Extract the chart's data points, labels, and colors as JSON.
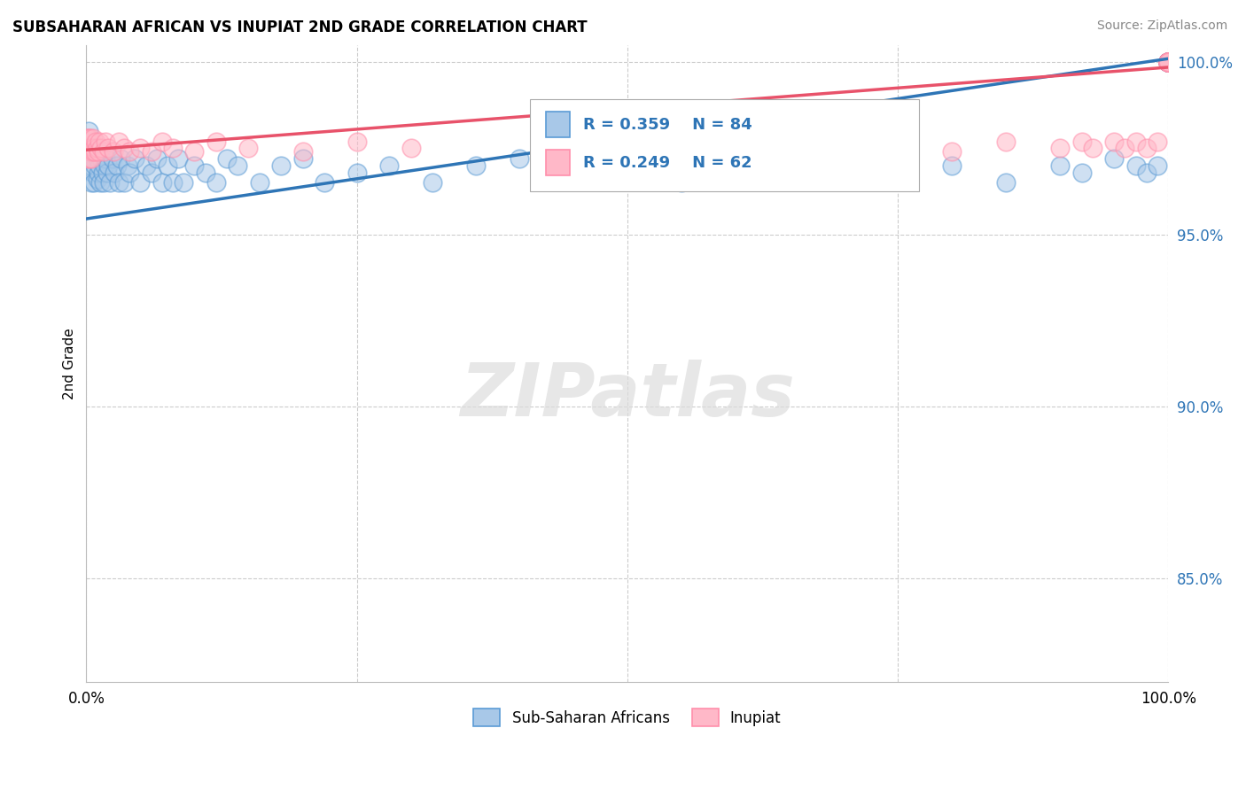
{
  "title": "SUBSAHARAN AFRICAN VS INUPIAT 2ND GRADE CORRELATION CHART",
  "source_text": "Source: ZipAtlas.com",
  "ylabel": "2nd Grade",
  "xlim": [
    0.0,
    1.0
  ],
  "ylim": [
    0.82,
    1.005
  ],
  "yticks": [
    0.85,
    0.9,
    0.95,
    1.0
  ],
  "ytick_labels": [
    "85.0%",
    "90.0%",
    "95.0%",
    "100.0%"
  ],
  "xticks": [
    0.0,
    0.25,
    0.5,
    0.75,
    1.0
  ],
  "xtick_labels": [
    "0.0%",
    "",
    "",
    "",
    "100.0%"
  ],
  "legend_R1": "R = 0.359",
  "legend_N1": "N = 84",
  "legend_R2": "R = 0.249",
  "legend_N2": "N = 62",
  "legend_label1": "Sub-Saharan Africans",
  "legend_label2": "Inupiat",
  "blue_color": "#A8C8E8",
  "blue_edge_color": "#5B9BD5",
  "pink_color": "#FFB8C8",
  "pink_edge_color": "#FF8FAB",
  "blue_line_color": "#2E75B6",
  "pink_line_color": "#E8526A",
  "grid_color": "#CCCCCC",
  "watermark_color": "#DDDDDD",
  "blue_trend_y_start": 0.9545,
  "blue_trend_y_end": 1.001,
  "pink_trend_y_start": 0.9745,
  "pink_trend_y_end": 0.9985,
  "blue_scatter_x": [
    0.002,
    0.003,
    0.004,
    0.005,
    0.005,
    0.006,
    0.006,
    0.007,
    0.007,
    0.008,
    0.009,
    0.01,
    0.01,
    0.011,
    0.012,
    0.013,
    0.014,
    0.015,
    0.016,
    0.017,
    0.018,
    0.019,
    0.02,
    0.022,
    0.024,
    0.026,
    0.028,
    0.03,
    0.032,
    0.035,
    0.038,
    0.04,
    0.045,
    0.05,
    0.055,
    0.06,
    0.065,
    0.07,
    0.075,
    0.08,
    0.085,
    0.09,
    0.1,
    0.11,
    0.12,
    0.13,
    0.14,
    0.16,
    0.18,
    0.2,
    0.22,
    0.25,
    0.28,
    0.32,
    0.36,
    0.4,
    0.45,
    0.5,
    0.55,
    0.6,
    0.65,
    0.7,
    0.75,
    0.8,
    0.85,
    0.9,
    0.92,
    0.95,
    0.97,
    0.98,
    0.99,
    1.0,
    1.0,
    1.0,
    1.0,
    1.0,
    1.0,
    1.0,
    1.0,
    1.0,
    1.0,
    1.0,
    1.0,
    1.0
  ],
  "blue_scatter_y": [
    0.98,
    0.975,
    0.972,
    0.97,
    0.965,
    0.975,
    0.968,
    0.972,
    0.965,
    0.97,
    0.975,
    0.972,
    0.966,
    0.968,
    0.97,
    0.965,
    0.972,
    0.968,
    0.965,
    0.97,
    0.972,
    0.968,
    0.97,
    0.965,
    0.972,
    0.968,
    0.97,
    0.965,
    0.972,
    0.965,
    0.97,
    0.968,
    0.972,
    0.965,
    0.97,
    0.968,
    0.972,
    0.965,
    0.97,
    0.965,
    0.972,
    0.965,
    0.97,
    0.968,
    0.965,
    0.972,
    0.97,
    0.965,
    0.97,
    0.972,
    0.965,
    0.968,
    0.97,
    0.965,
    0.97,
    0.972,
    0.97,
    0.968,
    0.965,
    0.97,
    0.972,
    0.97,
    0.968,
    0.97,
    0.965,
    0.97,
    0.968,
    0.972,
    0.97,
    0.968,
    0.97,
    1.0,
    1.0,
    1.0,
    1.0,
    1.0,
    1.0,
    1.0,
    1.0,
    1.0,
    1.0,
    1.0,
    1.0,
    1.0
  ],
  "pink_scatter_x": [
    0.0,
    0.0,
    0.001,
    0.001,
    0.002,
    0.003,
    0.003,
    0.004,
    0.004,
    0.005,
    0.005,
    0.006,
    0.006,
    0.007,
    0.008,
    0.009,
    0.01,
    0.011,
    0.012,
    0.014,
    0.016,
    0.018,
    0.02,
    0.025,
    0.03,
    0.035,
    0.04,
    0.05,
    0.06,
    0.07,
    0.08,
    0.1,
    0.12,
    0.15,
    0.2,
    0.25,
    0.3,
    0.6,
    0.65,
    0.7,
    0.75,
    0.8,
    0.85,
    0.9,
    0.92,
    0.93,
    0.95,
    0.96,
    0.97,
    0.98,
    0.99,
    1.0,
    1.0,
    1.0,
    1.0,
    1.0,
    1.0,
    1.0,
    1.0,
    1.0,
    1.0,
    1.0
  ],
  "pink_scatter_y": [
    0.978,
    0.975,
    0.978,
    0.972,
    0.978,
    0.975,
    0.972,
    0.978,
    0.974,
    0.975,
    0.972,
    0.978,
    0.974,
    0.975,
    0.974,
    0.977,
    0.975,
    0.974,
    0.977,
    0.975,
    0.974,
    0.977,
    0.975,
    0.974,
    0.977,
    0.975,
    0.974,
    0.975,
    0.974,
    0.977,
    0.975,
    0.974,
    0.977,
    0.975,
    0.974,
    0.977,
    0.975,
    0.974,
    0.977,
    0.975,
    0.977,
    0.974,
    0.977,
    0.975,
    0.977,
    0.975,
    0.977,
    0.975,
    0.977,
    0.975,
    0.977,
    1.0,
    1.0,
    1.0,
    1.0,
    1.0,
    1.0,
    1.0,
    1.0,
    1.0,
    1.0,
    1.0
  ]
}
